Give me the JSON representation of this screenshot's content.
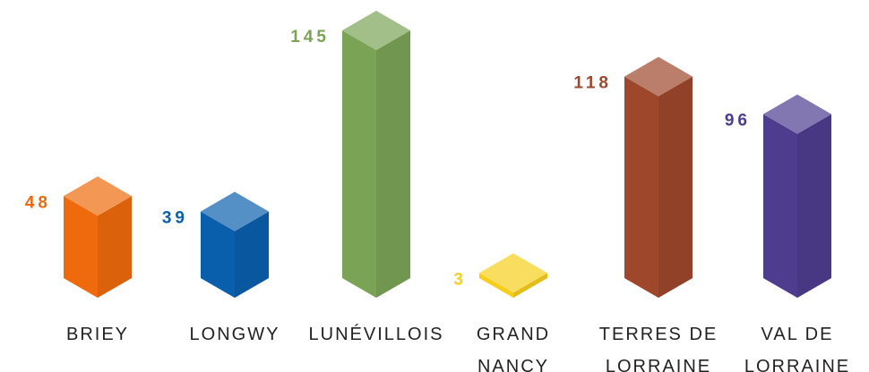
{
  "chart_data": {
    "type": "bar3d",
    "categories": [
      "BRIEY",
      "LONGWY",
      "LUNÉVILLOIS",
      "GRAND NANCY",
      "TERRES DE LORRAINE",
      "VAL DE LORRAINE"
    ],
    "values": [
      48,
      39,
      145,
      3,
      118,
      96
    ],
    "colors": [
      "#ee6a0c",
      "#0a5fad",
      "#7aa356",
      "#f7cf1a",
      "#9e472a",
      "#4e3d8f"
    ]
  }
}
